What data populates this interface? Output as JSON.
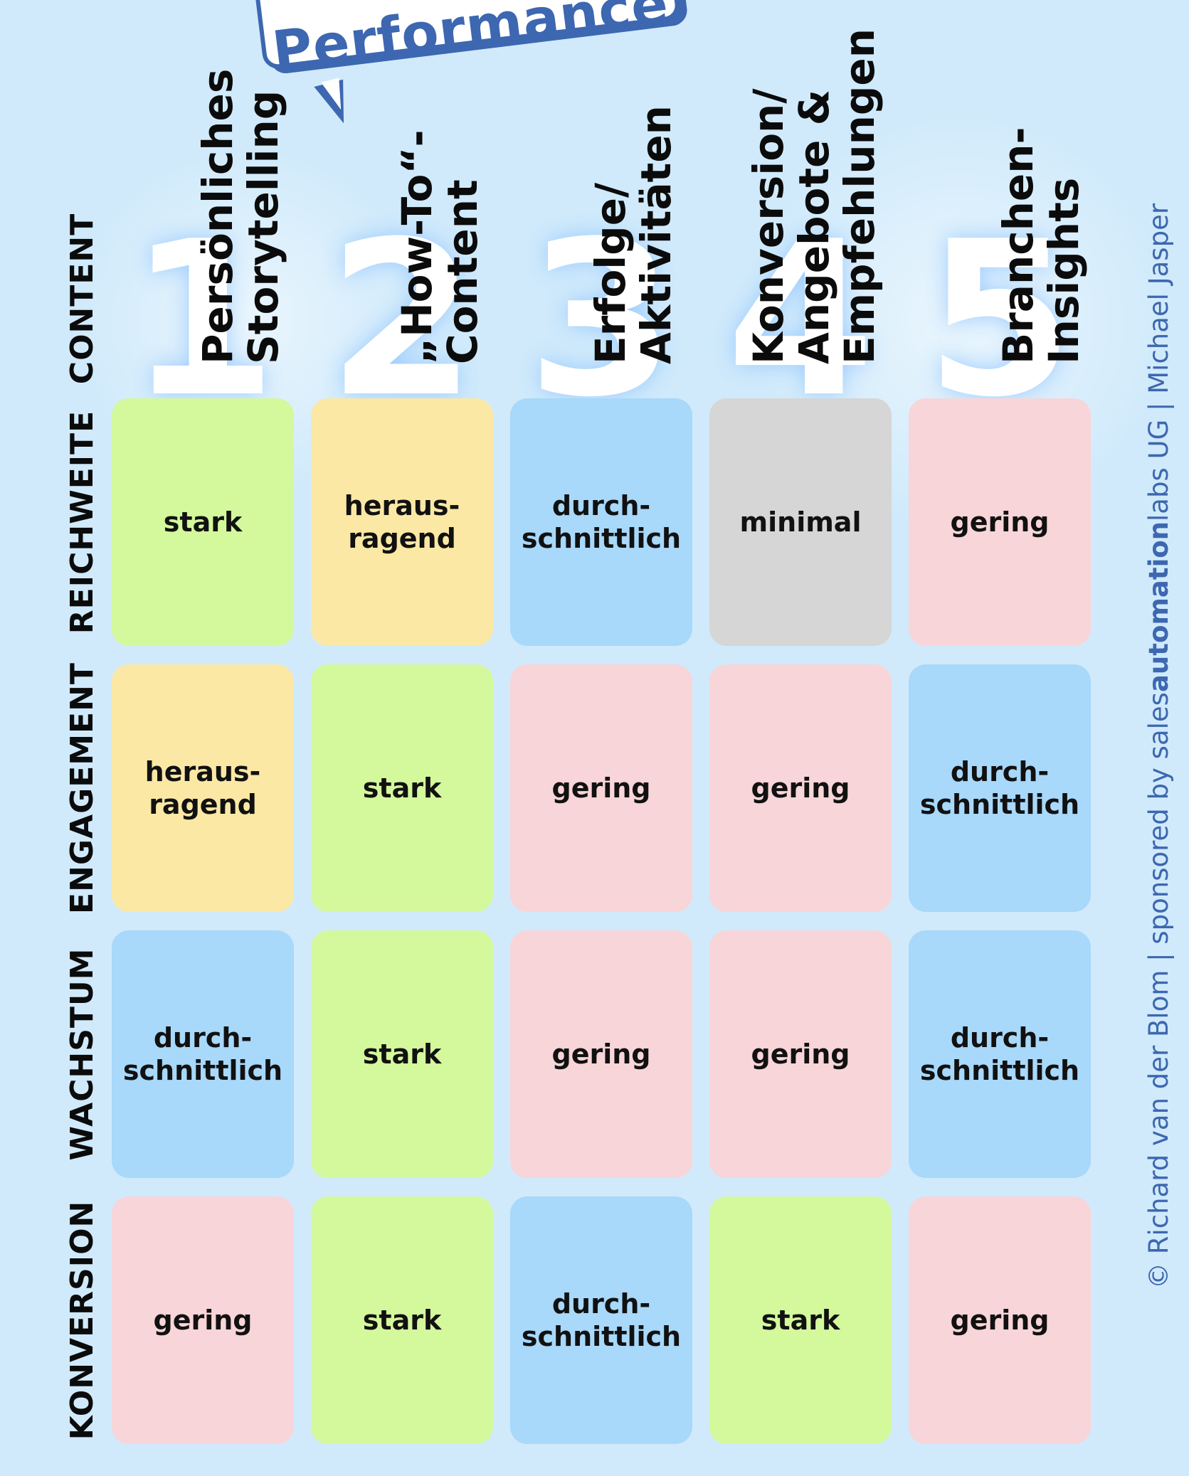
{
  "badge": "Performance",
  "header_label": "CONTENT",
  "columns": [
    {
      "number": "1",
      "title": "Persönliches\nStorytelling"
    },
    {
      "number": "2",
      "title": "„How-To“-\nContent"
    },
    {
      "number": "3",
      "title": "Erfolge/\nAktivitäten"
    },
    {
      "number": "4",
      "title": "Konversion/\nAngebote &\nEmpfehlungen"
    },
    {
      "number": "5",
      "title": "Branchen-\nInsights"
    }
  ],
  "rows": [
    {
      "label": "REICHWEITE",
      "cells": [
        "stark",
        "heraus-\nragend",
        "durch-\nschnittlich",
        "minimal",
        "gering"
      ]
    },
    {
      "label": "ENGAGEMENT",
      "cells": [
        "heraus-\nragend",
        "stark",
        "gering",
        "gering",
        "durch-\nschnittlich"
      ]
    },
    {
      "label": "WACHSTUM",
      "cells": [
        "durch-\nschnittlich",
        "stark",
        "gering",
        "gering",
        "durch-\nschnittlich"
      ]
    },
    {
      "label": "KONVERSION",
      "cells": [
        "gering",
        "stark",
        "durch-\nschnittlich",
        "stark",
        "gering"
      ]
    }
  ],
  "credit": {
    "prefix": "© Richard van der Blom | sponsored by sales",
    "bold": "automation",
    "suffix": "labs UG | Michael Jasper"
  },
  "colors": {
    "stark": "#d4f89c",
    "herausragend": "#fbe8a5",
    "durchschnittlich": "#a8d8fa",
    "minimal": "#d6d6d6",
    "gering": "#f8d5d8",
    "accent": "#3d67b0"
  }
}
